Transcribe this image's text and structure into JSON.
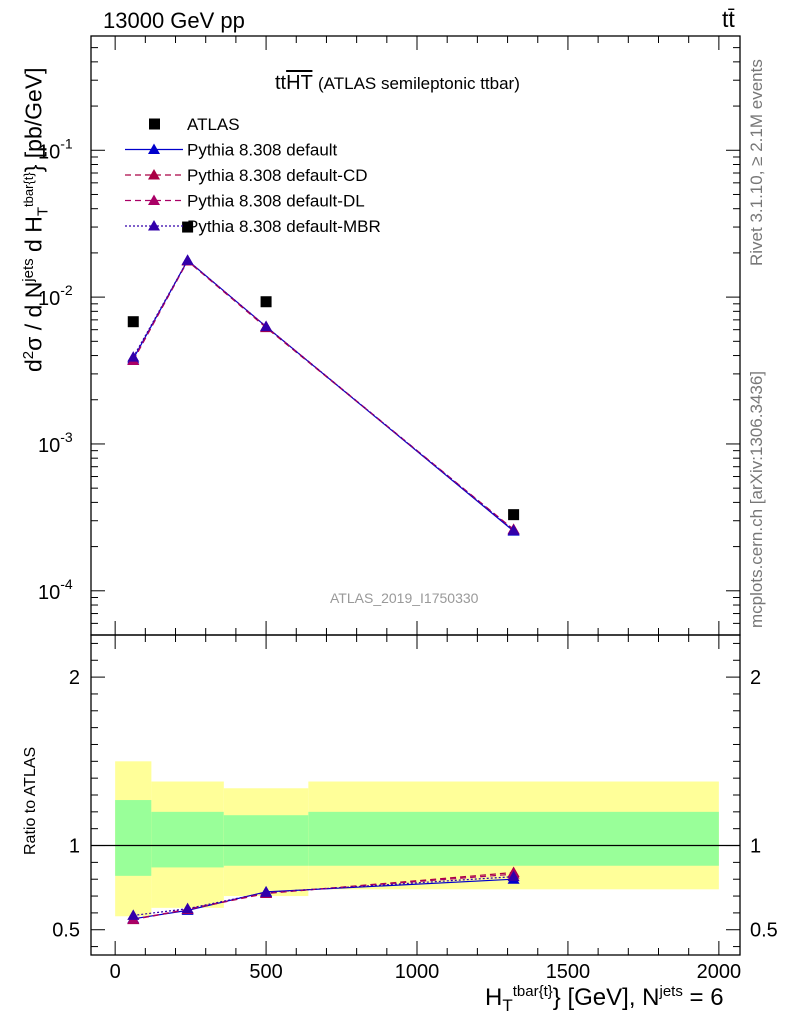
{
  "header": {
    "left": "13000 GeV pp",
    "right": "tt̄"
  },
  "side_labels": {
    "rivet": "Rivet 3.1.10, ≥ 2.1M events",
    "mcplots": "mcplots.cern.ch [arXiv:1306.3436]"
  },
  "axis_text": {
    "main_ylabel": "d²σ / d N^jets d H_T^tbar{t} [pb/GeV]",
    "ratio_ylabel": "Ratio to ATLAS",
    "xlabel": "H_T^tbar{t} [GeV], N^jets = 6"
  },
  "title": {
    "main": "ttHT",
    "sub": "(ATLAS semileptonic ttbar)"
  },
  "watermark": "ATLAS_2019_I1750330",
  "colors": {
    "data": "#000000",
    "default": "#0000cc",
    "cd": "#aa0044",
    "dl": "#aa0066",
    "mbr": "#3300aa",
    "band_inner": "#99ff99",
    "band_outer": "#ffff99"
  },
  "chart_data": [
    {
      "type": "scatter",
      "panel": "main",
      "x": [
        60,
        240,
        500,
        1320
      ],
      "x_bins": [
        [
          0,
          120
        ],
        [
          120,
          360
        ],
        [
          360,
          640
        ],
        [
          640,
          2000
        ]
      ],
      "series": [
        {
          "name": "ATLAS",
          "values": [
            0.0068,
            0.03,
            0.0093,
            0.00033
          ],
          "marker": "square",
          "color": "#000000"
        },
        {
          "name": "Pythia 8.308 default",
          "values": [
            0.0038,
            0.0178,
            0.0063,
            0.000255
          ],
          "marker": "triangle",
          "line": "solid",
          "color": "#0000cc"
        },
        {
          "name": "Pythia 8.308 default-CD",
          "values": [
            0.0037,
            0.0176,
            0.0062,
            0.000262
          ],
          "marker": "triangle",
          "line": "dashed",
          "color": "#aa0044"
        },
        {
          "name": "Pythia 8.308 default-DL",
          "values": [
            0.0037,
            0.0177,
            0.0063,
            0.00026
          ],
          "marker": "triangle",
          "line": "dashed",
          "color": "#aa0066"
        },
        {
          "name": "Pythia 8.308 default-MBR",
          "values": [
            0.0039,
            0.0178,
            0.0063,
            0.000258
          ],
          "marker": "triangle",
          "line": "dotted",
          "color": "#3300aa"
        }
      ],
      "xlim": [
        -80,
        2070
      ],
      "ylim": [
        5e-05,
        0.6
      ],
      "yscale": "log",
      "ytick_labels": [
        "10^-4",
        "10^-3",
        "10^-2",
        "10^-1"
      ]
    },
    {
      "type": "line",
      "panel": "ratio",
      "x": [
        60,
        240,
        500,
        1320
      ],
      "series": [
        {
          "name": "Pythia 8.308 default",
          "values": [
            0.565,
            0.615,
            0.725,
            0.8
          ]
        },
        {
          "name": "Pythia 8.308 default-CD",
          "values": [
            0.56,
            0.62,
            0.715,
            0.84
          ]
        },
        {
          "name": "Pythia 8.308 default-DL",
          "values": [
            0.562,
            0.622,
            0.718,
            0.83
          ]
        },
        {
          "name": "Pythia 8.308 default-MBR",
          "values": [
            0.585,
            0.625,
            0.722,
            0.815
          ]
        }
      ],
      "bands": {
        "x_bins": [
          [
            0,
            120
          ],
          [
            120,
            360
          ],
          [
            360,
            640
          ],
          [
            640,
            2000
          ]
        ],
        "inner": [
          [
            0.82,
            1.27
          ],
          [
            0.87,
            1.2
          ],
          [
            0.88,
            1.18
          ],
          [
            0.88,
            1.2
          ]
        ],
        "outer": [
          [
            0.58,
            1.5
          ],
          [
            0.63,
            1.38
          ],
          [
            0.7,
            1.34
          ],
          [
            0.74,
            1.38
          ]
        ]
      },
      "xlim": [
        -80,
        2070
      ],
      "ylim": [
        0.35,
        2.25
      ],
      "yticks": [
        0.5,
        1,
        2
      ],
      "ytick_labels": [
        "0.5",
        "1",
        "2"
      ],
      "xticks": [
        0,
        500,
        1000,
        1500,
        2000
      ],
      "xtick_labels": [
        "0",
        "500",
        "1000",
        "1500",
        "2000"
      ]
    }
  ]
}
